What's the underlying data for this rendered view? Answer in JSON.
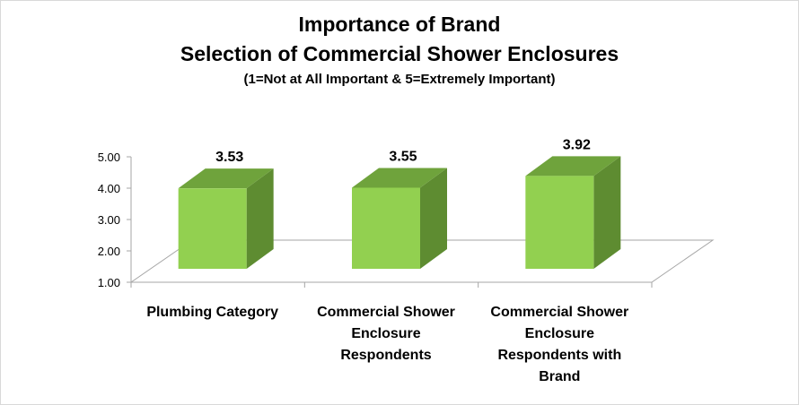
{
  "chart_data": {
    "type": "bar",
    "title": "Importance of Brand",
    "subtitle": "Selection of Commercial Shower Enclosures",
    "note": "(1=Not at All Important & 5=Extremely Important)",
    "categories": [
      [
        "Plumbing Category"
      ],
      [
        "Commercial Shower",
        "Enclosure",
        "Respondents"
      ],
      [
        "Commercial Shower",
        "Enclosure",
        "Respondents with",
        "Brand"
      ]
    ],
    "values": [
      3.53,
      3.55,
      3.92
    ],
    "value_labels": [
      "3.53",
      "3.55",
      "3.92"
    ],
    "ylim": [
      1.0,
      5.0
    ],
    "yticks": [
      "1.00",
      "2.00",
      "3.00",
      "4.00",
      "5.00"
    ],
    "grid": false,
    "colors": {
      "front": "#92d050",
      "side": "#5e8c31",
      "top": "#6fa33c"
    }
  }
}
